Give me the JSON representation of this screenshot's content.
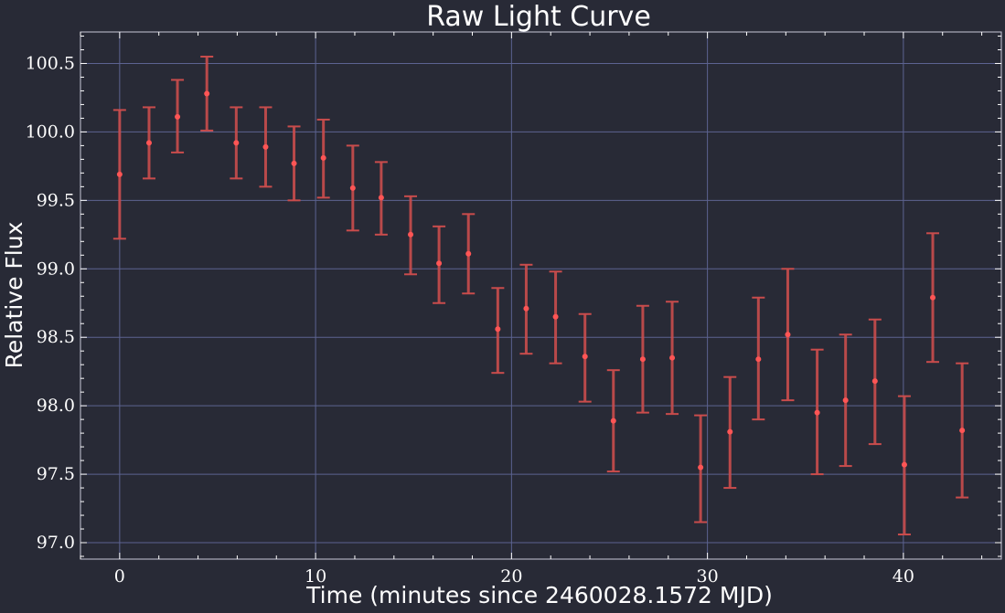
{
  "chart_data": {
    "type": "scatter",
    "title": "Raw Light Curve",
    "xlabel": "Time (minutes since 2460028.1572 MJD)",
    "ylabel": "Relative Flux",
    "xlim": [
      -2,
      45
    ],
    "ylim": [
      96.88,
      100.73
    ],
    "xticks": [
      0,
      10,
      20,
      30,
      40
    ],
    "xtick_labels": [
      "0",
      "10",
      "20",
      "30",
      "40"
    ],
    "yticks": [
      97.0,
      97.5,
      98.0,
      98.5,
      99.0,
      99.5,
      100.0,
      100.5
    ],
    "ytick_labels": [
      "97.0",
      "97.5",
      "98.0",
      "98.5",
      "99.0",
      "99.5",
      "100.0",
      "100.5"
    ],
    "grid": true,
    "error_bars": true,
    "marker_color": "#ff5555",
    "errorbar_color": "#c94c4c",
    "background_color": "#282a36",
    "grid_color": "#5c6391",
    "points": [
      {
        "x": 0.0,
        "y": 99.69,
        "lower": 99.22,
        "upper": 100.16
      },
      {
        "x": 1.5,
        "y": 99.92,
        "lower": 99.66,
        "upper": 100.18
      },
      {
        "x": 2.95,
        "y": 100.11,
        "lower": 99.85,
        "upper": 100.38
      },
      {
        "x": 4.45,
        "y": 100.28,
        "lower": 100.01,
        "upper": 100.55
      },
      {
        "x": 5.95,
        "y": 99.92,
        "lower": 99.66,
        "upper": 100.18
      },
      {
        "x": 7.45,
        "y": 99.89,
        "lower": 99.6,
        "upper": 100.18
      },
      {
        "x": 8.9,
        "y": 99.77,
        "lower": 99.5,
        "upper": 100.04
      },
      {
        "x": 10.4,
        "y": 99.81,
        "lower": 99.52,
        "upper": 100.09
      },
      {
        "x": 11.9,
        "y": 99.59,
        "lower": 99.28,
        "upper": 99.9
      },
      {
        "x": 13.35,
        "y": 99.52,
        "lower": 99.25,
        "upper": 99.78
      },
      {
        "x": 14.85,
        "y": 99.25,
        "lower": 98.96,
        "upper": 99.53
      },
      {
        "x": 16.3,
        "y": 99.04,
        "lower": 98.75,
        "upper": 99.31
      },
      {
        "x": 17.8,
        "y": 99.11,
        "lower": 98.82,
        "upper": 99.4
      },
      {
        "x": 19.3,
        "y": 98.56,
        "lower": 98.24,
        "upper": 98.86
      },
      {
        "x": 20.75,
        "y": 98.71,
        "lower": 98.38,
        "upper": 99.03
      },
      {
        "x": 22.25,
        "y": 98.65,
        "lower": 98.31,
        "upper": 98.98
      },
      {
        "x": 23.75,
        "y": 98.36,
        "lower": 98.03,
        "upper": 98.67
      },
      {
        "x": 25.2,
        "y": 97.89,
        "lower": 97.52,
        "upper": 98.26
      },
      {
        "x": 26.7,
        "y": 98.34,
        "lower": 97.95,
        "upper": 98.73
      },
      {
        "x": 28.2,
        "y": 98.35,
        "lower": 97.94,
        "upper": 98.76
      },
      {
        "x": 29.65,
        "y": 97.55,
        "lower": 97.15,
        "upper": 97.93
      },
      {
        "x": 31.15,
        "y": 97.81,
        "lower": 97.4,
        "upper": 98.21
      },
      {
        "x": 32.6,
        "y": 98.34,
        "lower": 97.9,
        "upper": 98.79
      },
      {
        "x": 34.1,
        "y": 98.52,
        "lower": 98.04,
        "upper": 99.0
      },
      {
        "x": 35.6,
        "y": 97.95,
        "lower": 97.5,
        "upper": 98.41
      },
      {
        "x": 37.05,
        "y": 98.04,
        "lower": 97.56,
        "upper": 98.52
      },
      {
        "x": 38.55,
        "y": 98.18,
        "lower": 97.72,
        "upper": 98.63
      },
      {
        "x": 40.05,
        "y": 97.57,
        "lower": 97.06,
        "upper": 98.07
      },
      {
        "x": 41.5,
        "y": 98.79,
        "lower": 98.32,
        "upper": 99.26
      },
      {
        "x": 43.0,
        "y": 97.82,
        "lower": 97.33,
        "upper": 98.31
      }
    ]
  }
}
